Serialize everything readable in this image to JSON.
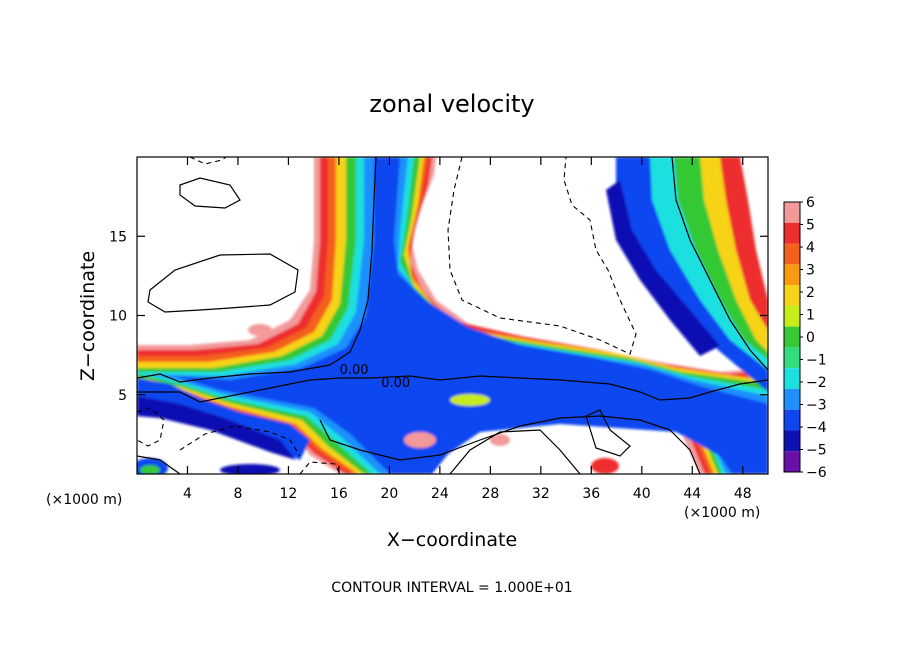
{
  "chart_data": {
    "type": "heatmap",
    "title": "zonal velocity",
    "xlabel": "X−coordinate",
    "ylabel": "Z−coordinate",
    "xunit": "(×1000 m)",
    "xunit_right": "(×1000 m)",
    "xlim": [
      0,
      50
    ],
    "ylim": [
      0,
      20
    ],
    "xticks": [
      4,
      8,
      12,
      16,
      20,
      24,
      28,
      32,
      36,
      40,
      44,
      48
    ],
    "yticks": [
      5,
      10,
      15
    ],
    "footer": "CONTOUR INTERVAL = 1.000E+01",
    "contour_labels": [
      {
        "text": "0.00",
        "x": 17.2,
        "y": 6.3
      },
      {
        "text": "0.00",
        "x": 20.5,
        "y": 5.5
      }
    ],
    "colorbar": {
      "levels": [
        6,
        5,
        4,
        3,
        2,
        1,
        0,
        -1,
        -2,
        -3,
        -4,
        -5,
        -6
      ],
      "labels": [
        "6",
        "5",
        "4",
        "3",
        "2",
        "1",
        "0",
        "−1",
        "−2",
        "−3",
        "−4",
        "−5",
        "−6"
      ],
      "colors": [
        "#f29a9a",
        "#ee2d2d",
        "#f4601e",
        "#fa9a10",
        "#f6d318",
        "#c6ec1a",
        "#36c836",
        "#33dc7c",
        "#1ce0e0",
        "#1e90ff",
        "#1046f0",
        "#1010b4",
        "#6a10a8"
      ]
    }
  }
}
